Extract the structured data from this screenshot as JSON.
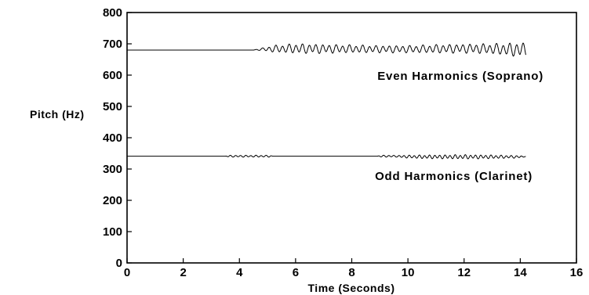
{
  "chart_data": {
    "type": "line",
    "title": "",
    "xlabel": "Time (Seconds)",
    "ylabel": "Pitch (Hz)",
    "xlim": [
      0,
      16
    ],
    "ylim": [
      0,
      800
    ],
    "x_ticks": [
      0,
      2,
      4,
      6,
      8,
      10,
      12,
      14,
      16
    ],
    "y_ticks": [
      0,
      100,
      200,
      300,
      400,
      500,
      600,
      700,
      800
    ],
    "grid": false,
    "legend": "none",
    "line_color": "#000000",
    "series": [
      {
        "name": "Even Harmonics (Soprano)",
        "x": [
          0.0,
          4.5,
          4.7,
          5.0,
          5.3,
          6.0,
          7.0,
          8.0,
          9.0,
          10.0,
          11.0,
          12.0,
          13.0,
          13.5,
          14.0,
          14.2
        ],
        "center": [
          680,
          680,
          682,
          683,
          684,
          685,
          684,
          684,
          683,
          683,
          684,
          685,
          684,
          682,
          681,
          682
        ],
        "amplitude": [
          0,
          0,
          3,
          8,
          12,
          16,
          15,
          13,
          12,
          12,
          14,
          15,
          17,
          20,
          24,
          24
        ]
      },
      {
        "name": "Odd Harmonics (Clarinet)",
        "x": [
          0.0,
          3.5,
          3.6,
          5.1,
          5.2,
          8.9,
          9.0,
          9.6,
          9.7,
          10.5,
          12.0,
          13.0,
          14.0,
          14.2
        ],
        "center": [
          341,
          341,
          341,
          341,
          341,
          341,
          341,
          341,
          340,
          339,
          339,
          339,
          339,
          340
        ],
        "amplitude": [
          0,
          0,
          3,
          3,
          0,
          0,
          3,
          3,
          4,
          6,
          7,
          6,
          4,
          0
        ]
      }
    ]
  }
}
